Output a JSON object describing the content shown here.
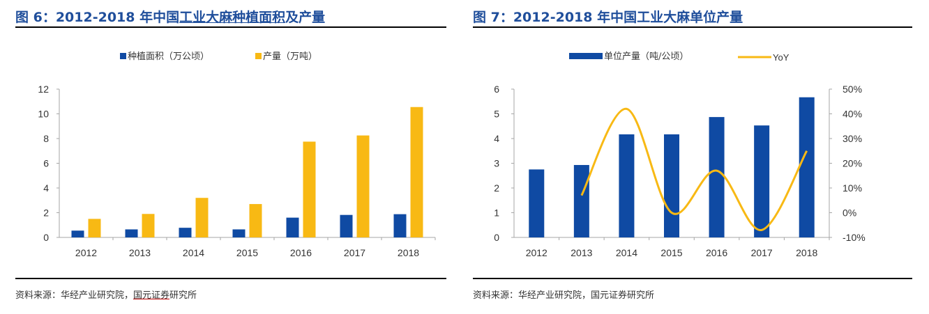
{
  "figure6": {
    "title_prefix": "图 6：2012-2018 年中国",
    "title_underlined": "工业大麻种植面积",
    "title_suffix": "及产量",
    "source_prefix": "资料来源：华经产业研究院，",
    "source_underlined": "国元证券",
    "source_suffix": "研究所",
    "legend": {
      "area": "种植面积（万公顷）",
      "output": "产量（万吨）"
    }
  },
  "figure7": {
    "title": "图 7：2012-2018 年中国工业大麻单位产量",
    "source": "资料来源：华经产业研究院，国元证券研究所",
    "legend": {
      "bar": "单位产量（吨/公顷）",
      "line": "YoY"
    }
  },
  "colors": {
    "blue": "#0f4aa3",
    "yellow": "#f8b914",
    "title": "#1f4e9b"
  },
  "chart_data": [
    {
      "type": "bar",
      "categories": [
        "2012",
        "2013",
        "2014",
        "2015",
        "2016",
        "2017",
        "2018"
      ],
      "series": [
        {
          "name": "种植面积（万公顷）",
          "values": [
            0.55,
            0.65,
            0.78,
            0.65,
            1.6,
            1.82,
            1.88
          ]
        },
        {
          "name": "产量（万吨）",
          "values": [
            1.5,
            1.9,
            3.2,
            2.7,
            7.75,
            8.25,
            10.55
          ]
        }
      ],
      "ylim": [
        0,
        12
      ],
      "yticks": [
        "0",
        "2",
        "4",
        "6",
        "8",
        "10",
        "12"
      ],
      "legend_position": "top-center"
    },
    {
      "type": "bar+line",
      "categories": [
        "2012",
        "2013",
        "2014",
        "2015",
        "2016",
        "2017",
        "2018"
      ],
      "series": [
        {
          "name": "单位产量（吨/公顷）",
          "type": "bar",
          "axis": "left",
          "values": [
            2.75,
            2.93,
            4.17,
            4.17,
            4.87,
            4.53,
            5.67
          ]
        },
        {
          "name": "YoY",
          "type": "line",
          "axis": "right",
          "values": [
            null,
            0.07,
            0.42,
            0.0,
            0.17,
            -0.07,
            0.25
          ]
        }
      ],
      "ylim_left": [
        0,
        6
      ],
      "yticks_left": [
        "0",
        "1",
        "2",
        "3",
        "4",
        "5",
        "6"
      ],
      "ylim_right": [
        -0.1,
        0.5
      ],
      "yticks_right": [
        "-10%",
        "0%",
        "10%",
        "20%",
        "30%",
        "40%",
        "50%"
      ],
      "legend_position": "top-center"
    }
  ]
}
